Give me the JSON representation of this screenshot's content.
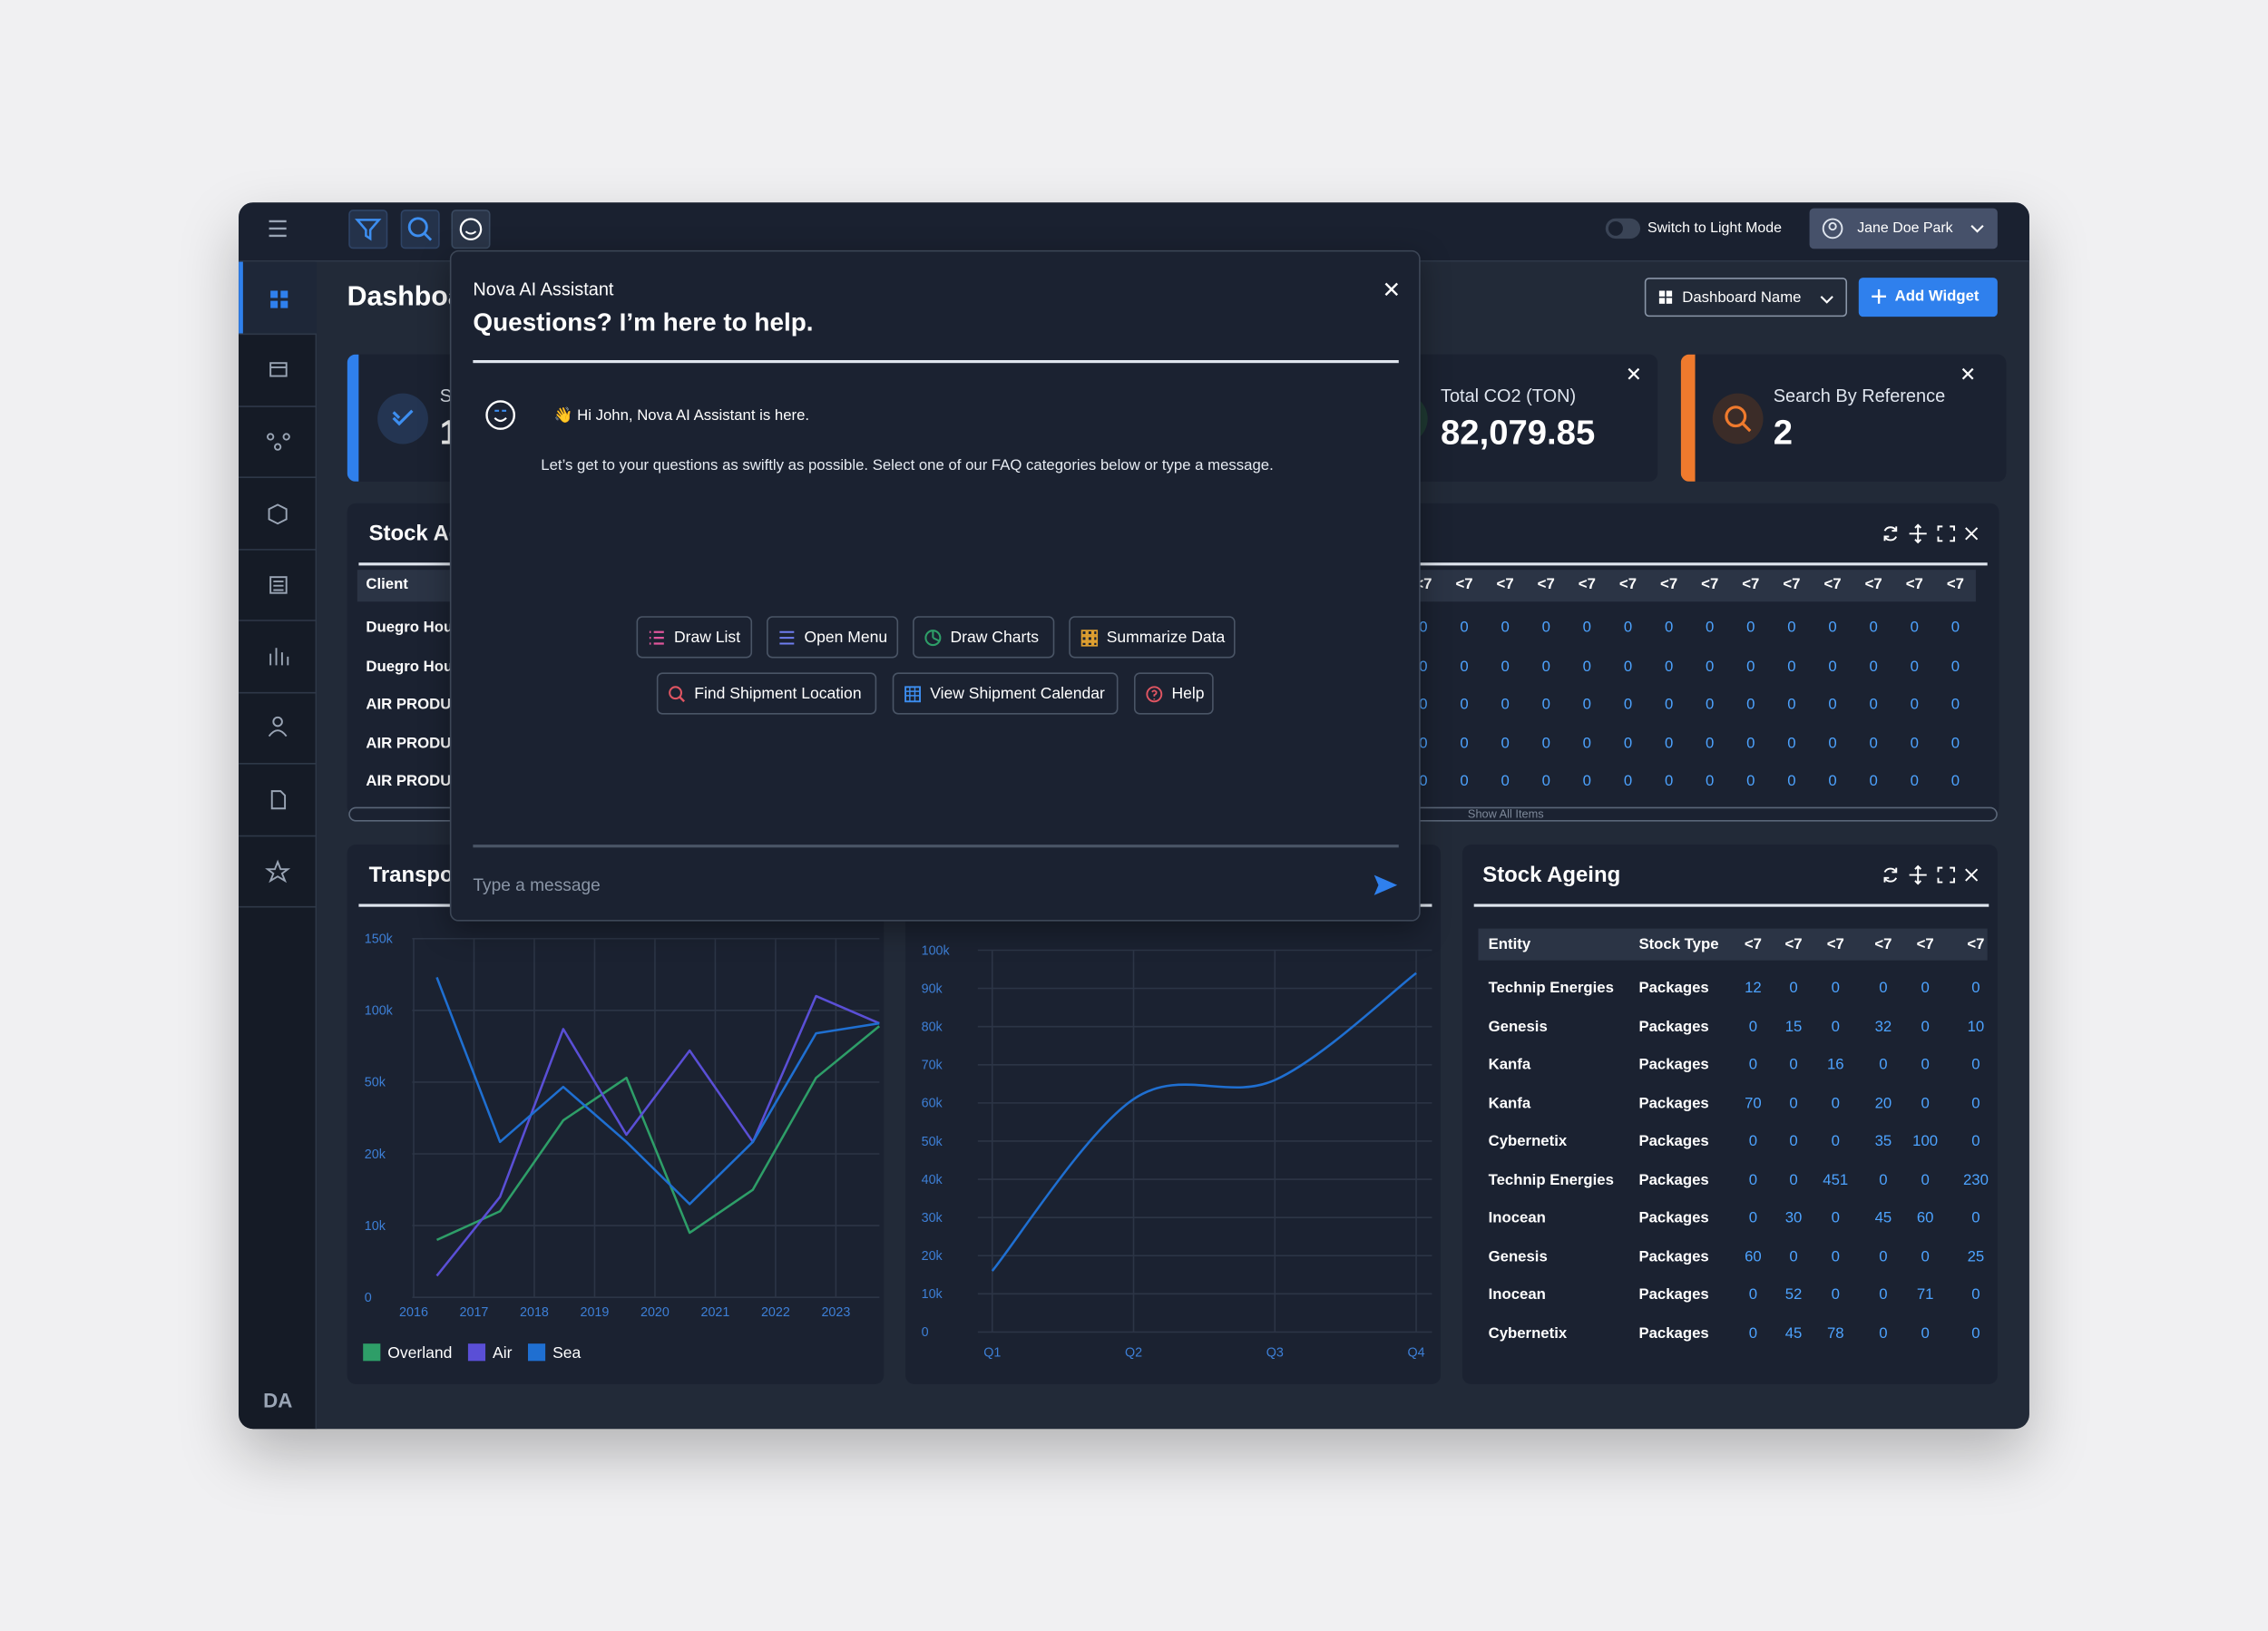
{
  "topbar": {
    "theme_toggle": "Switch to Light Mode",
    "user": "Jane Doe Park"
  },
  "sidebar": {
    "logo": "DA"
  },
  "header": {
    "title": "Dashboard",
    "dashboard_select": "Dashboard Name",
    "add_widget": "Add Widget"
  },
  "cards": [
    {
      "label": "S",
      "value": 1
    },
    {
      "label": "Total CO2 (TON)",
      "value": "82,079.85"
    },
    {
      "label": "Search By Reference",
      "value": 2
    }
  ],
  "stock_table": {
    "title": "Stock Ageing",
    "columns": [
      "Client",
      "<7",
      "<7",
      "<7",
      "<7",
      "<7",
      "<7",
      "<7",
      "<7",
      "<7",
      "<7",
      "<7",
      "<7",
      "<7",
      "<7"
    ],
    "rows": [
      [
        "Duegro Hou",
        0,
        0,
        0,
        0,
        0,
        0,
        0,
        0,
        0,
        0,
        0,
        0,
        0,
        0
      ],
      [
        "Duegro Hou",
        0,
        0,
        0,
        0,
        0,
        0,
        0,
        0,
        0,
        0,
        0,
        0,
        0,
        0
      ],
      [
        "AIR PRODU",
        0,
        0,
        0,
        0,
        0,
        0,
        0,
        0,
        0,
        0,
        0,
        0,
        0,
        0
      ],
      [
        "AIR PRODU",
        0,
        0,
        0,
        0,
        0,
        0,
        0,
        0,
        0,
        0,
        0,
        0,
        0,
        0
      ],
      [
        "AIR PRODU",
        0,
        0,
        0,
        0,
        0,
        0,
        0,
        0,
        0,
        0,
        0,
        0,
        0,
        0
      ]
    ],
    "footer": "Show All Items"
  },
  "ageing_table": {
    "title": "Stock Ageing",
    "columns": [
      "Entity",
      "Stock Type",
      "<7",
      "<7",
      "<7",
      "<7",
      "<7",
      "<7"
    ],
    "rows": [
      [
        "Technip Energies",
        "Packages",
        12,
        0,
        0,
        0,
        0,
        0
      ],
      [
        "Genesis",
        "Packages",
        0,
        15,
        0,
        32,
        0,
        10
      ],
      [
        "Kanfa",
        "Packages",
        0,
        0,
        16,
        0,
        0,
        0
      ],
      [
        "Kanfa",
        "Packages",
        70,
        0,
        0,
        20,
        0,
        0
      ],
      [
        "Cybernetix",
        "Packages",
        0,
        0,
        0,
        35,
        100,
        0
      ],
      [
        "Technip Energies",
        "Packages",
        0,
        0,
        451,
        0,
        0,
        230
      ],
      [
        "Inocean",
        "Packages",
        0,
        30,
        0,
        45,
        60,
        0
      ],
      [
        "Genesis",
        "Packages",
        60,
        0,
        0,
        0,
        0,
        25
      ],
      [
        "Inocean",
        "Packages",
        0,
        52,
        0,
        0,
        71,
        0
      ],
      [
        "Cybernetix",
        "Packages",
        0,
        45,
        78,
        0,
        0,
        0
      ]
    ]
  },
  "assistant": {
    "name": "Nova AI Assistant",
    "heading": "Questions? I’m here to help.",
    "greeting": "👋 Hi John, Nova AI Assistant is here.",
    "message": "Let’s get to your questions as swiftly as possible. Select one of our FAQ categories below or type a message.",
    "chips": [
      "Draw List",
      "Open Menu",
      "Draw Charts",
      "Summarize Data",
      "Find Shipment Location",
      "View Shipment Calendar",
      "Help"
    ],
    "input_placeholder": "Type a message"
  },
  "chart_data": [
    {
      "type": "line",
      "title": "Transpo",
      "categories": [
        "2016",
        "2017",
        "2018",
        "2019",
        "2020",
        "2021",
        "2022",
        "2023"
      ],
      "ylim": [
        0,
        150000
      ],
      "yticks": [
        0,
        {
          "value": 10000,
          "label": "10k"
        },
        {
          "value": 20000,
          "label": "20k"
        },
        {
          "value": 50000,
          "label": "50k"
        },
        {
          "value": 100000,
          "label": "100k"
        },
        {
          "value": 150000,
          "label": "150k"
        }
      ],
      "grid": true,
      "series": [
        {
          "name": "Overland",
          "color": "#2e9e68",
          "values": [
            8000,
            12000,
            34000,
            53000,
            9000,
            15000,
            53000,
            89000
          ]
        },
        {
          "name": "Air",
          "color": "#5a4fd6",
          "values": [
            3000,
            14000,
            87000,
            28000,
            72000,
            25000,
            110000,
            91000
          ]
        },
        {
          "name": "Sea",
          "color": "#1f6fd1",
          "values": [
            123000,
            25000,
            48000,
            25000,
            13000,
            25000,
            84000,
            91000
          ]
        }
      ]
    },
    {
      "type": "line",
      "smooth": true,
      "categories": [
        "Q1",
        "Q2",
        "Q3",
        "Q4"
      ],
      "ylim": [
        0,
        100000
      ],
      "yticks": [
        0,
        {
          "value": 10000,
          "label": "10k"
        },
        {
          "value": 20000,
          "label": "20k"
        },
        {
          "value": 30000,
          "label": "30k"
        },
        {
          "value": 40000,
          "label": "40k"
        },
        {
          "value": 50000,
          "label": "50k"
        },
        {
          "value": 60000,
          "label": "60k"
        },
        {
          "value": 70000,
          "label": "70k"
        },
        {
          "value": 80000,
          "label": "80k"
        },
        {
          "value": 90000,
          "label": "90k"
        },
        {
          "value": 100000,
          "label": "100k"
        }
      ],
      "grid": true,
      "series": [
        {
          "color": "#1f6fd1",
          "values": [
            16000,
            61000,
            66000,
            94000
          ]
        }
      ]
    }
  ]
}
